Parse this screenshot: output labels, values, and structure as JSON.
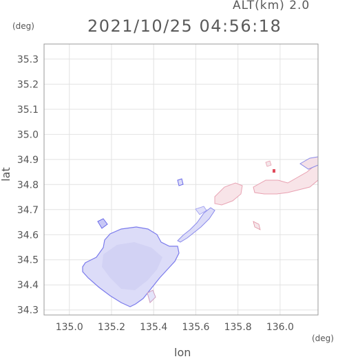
{
  "header": {
    "alt_label": "ALT(km) 2.0",
    "timestamp": "2021/10/25 04:56:18"
  },
  "axes": {
    "x_label": "lon",
    "y_label": "lat",
    "x_unit": "(deg)",
    "y_unit": "(deg)",
    "x_ticks": [
      "135.0",
      "135.2",
      "135.4",
      "135.6",
      "135.8",
      "136.0"
    ],
    "y_ticks": [
      "35.3",
      "35.2",
      "35.1",
      "35.0",
      "34.9",
      "34.8",
      "34.7",
      "34.6",
      "34.5",
      "34.4",
      "34.3"
    ]
  },
  "chart_data": {
    "type": "heatmap",
    "x_range": [
      134.88,
      136.18
    ],
    "y_range": [
      34.28,
      35.36
    ],
    "x_tick_values": [
      135.0,
      135.2,
      135.4,
      135.6,
      135.8,
      136.0
    ],
    "y_tick_values": [
      35.3,
      35.2,
      35.1,
      35.0,
      34.9,
      34.8,
      34.7,
      34.6,
      34.5,
      34.4,
      34.3
    ],
    "grid": true,
    "colors": {
      "blue_fill": "#dcdcf8",
      "blue_edge": "#6a6ae8",
      "pink_fill": "#f8e4e8",
      "pink_edge": "#e8a0b0",
      "red_spot": "#e04a5a",
      "frame": "#999999"
    }
  }
}
